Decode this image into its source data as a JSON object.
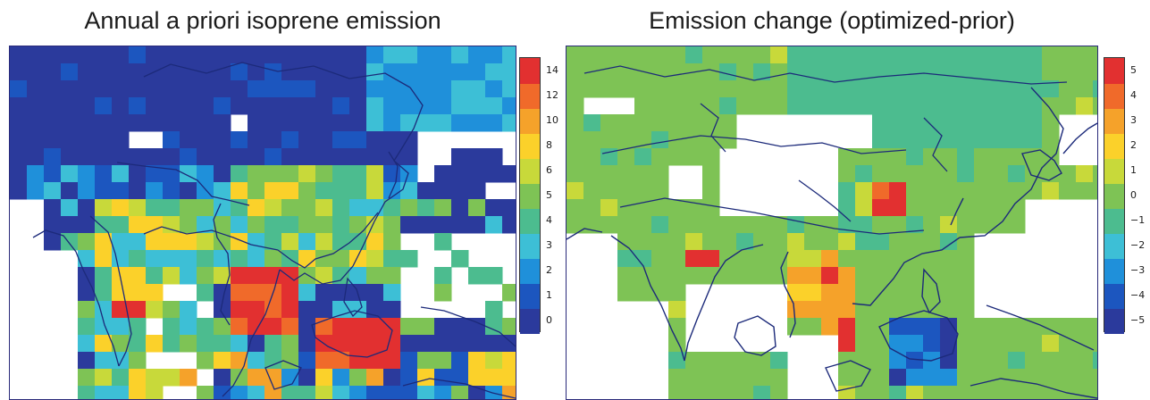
{
  "left_panel": {
    "title": "Annual a priori isoprene emission",
    "colorbar": {
      "labels": [
        "0",
        "1",
        "2",
        "3",
        "4",
        "5",
        "6",
        "8",
        "10",
        "12",
        "14"
      ],
      "colors": [
        "#2b3a9c",
        "#1c56bf",
        "#1f90da",
        "#3dbfd6",
        "#4cbc8f",
        "#7ec355",
        "#c8d93a",
        "#fbd12a",
        "#f5a22a",
        "#f06a2a",
        "#e23030"
      ]
    }
  },
  "right_panel": {
    "title": "Emission change (optimized-prior)",
    "colorbar": {
      "labels": [
        "−5",
        "−4",
        "−3",
        "−2",
        "−1",
        "0",
        "1",
        "2",
        "3",
        "4",
        "5"
      ],
      "colors": [
        "#2b3a9c",
        "#1c56bf",
        "#1f90da",
        "#3dbfd6",
        "#4cbc8f",
        "#7ec355",
        "#c8d93a",
        "#fbd12a",
        "#f5a22a",
        "#f06a2a",
        "#e23030"
      ]
    }
  }
}
